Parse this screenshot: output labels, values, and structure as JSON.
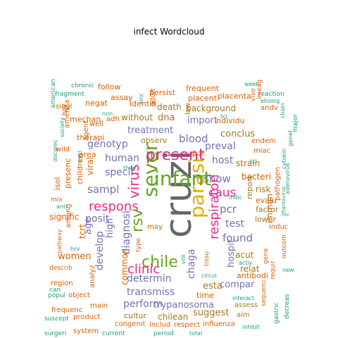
{
  "title": "infect  Wordcloud",
  "palette": {
    "teal": "#1b9e77",
    "orange": "#d95f02",
    "purple": "#7570b3",
    "pink": "#e7298a",
    "green": "#66a61e",
    "gold": "#e6ab02",
    "brown": "#a6761d",
    "gray": "#666666"
  },
  "words": [
    {
      "text": "cruzi",
      "color": "gray"
    },
    {
      "text": "parasit",
      "color": "gold"
    },
    {
      "text": "sever",
      "color": "green"
    },
    {
      "text": "infant",
      "color": "green"
    },
    {
      "text": "present",
      "color": "pink"
    },
    {
      "text": "respons",
      "color": "pink"
    },
    {
      "text": "virus",
      "color": "pink"
    },
    {
      "text": "rsv",
      "color": "green"
    },
    {
      "text": "chile",
      "color": "green"
    },
    {
      "text": "clinic",
      "color": "pink"
    },
    {
      "text": "respiratori",
      "color": "pink"
    },
    {
      "text": "caus",
      "color": "pink"
    },
    {
      "text": "show",
      "color": "purple"
    },
    {
      "text": "sampl",
      "color": "purple"
    },
    {
      "text": "blood",
      "color": "purple"
    },
    {
      "text": "host",
      "color": "purple"
    },
    {
      "text": "pcr",
      "color": "purple"
    },
    {
      "text": "test",
      "color": "purple"
    },
    {
      "text": "found",
      "color": "purple"
    },
    {
      "text": "human",
      "color": "purple"
    },
    {
      "text": "specif",
      "color": "purple"
    },
    {
      "text": "posit",
      "color": "purple"
    },
    {
      "text": "diagnosi",
      "color": "purple"
    },
    {
      "text": "genotyp",
      "color": "purple"
    },
    {
      "text": "treatment",
      "color": "purple"
    },
    {
      "text": "determin",
      "color": "purple"
    },
    {
      "text": "transmiss",
      "color": "purple"
    },
    {
      "text": "perform",
      "color": "purple"
    },
    {
      "text": "chaga",
      "color": "purple"
    },
    {
      "text": "hospit",
      "color": "purple"
    },
    {
      "text": "preval",
      "color": "purple"
    },
    {
      "text": "compar",
      "color": "purple"
    },
    {
      "text": "trypanosoma",
      "color": "purple"
    },
    {
      "text": "conclus",
      "color": "brown"
    },
    {
      "text": "import",
      "color": "purple"
    },
    {
      "text": "age",
      "color": "purple"
    },
    {
      "text": "develop",
      "color": "purple"
    },
    {
      "text": "high",
      "color": "purple"
    },
    {
      "text": "signific",
      "color": "orange"
    },
    {
      "text": "women",
      "color": "orange"
    },
    {
      "text": "dna",
      "color": "brown"
    },
    {
      "text": "without",
      "color": "brown"
    },
    {
      "text": "death",
      "color": "brown"
    },
    {
      "text": "background",
      "color": "brown"
    },
    {
      "text": "observ",
      "color": "brown"
    },
    {
      "text": "bacteri",
      "color": "orange"
    },
    {
      "text": "report",
      "color": "brown"
    },
    {
      "text": "risk",
      "color": "brown"
    },
    {
      "text": "evalu",
      "color": "orange"
    },
    {
      "text": "strain",
      "color": "orange"
    },
    {
      "text": "factor",
      "color": "brown"
    },
    {
      "text": "lower",
      "color": "brown"
    },
    {
      "text": "acut",
      "color": "brown"
    },
    {
      "text": "relat",
      "color": "brown"
    },
    {
      "text": "antibodi",
      "color": "orange"
    },
    {
      "text": "esta",
      "color": "brown"
    },
    {
      "text": "suggest",
      "color": "brown"
    },
    {
      "text": "time",
      "color": "orange"
    },
    {
      "text": "cultur",
      "color": "brown"
    },
    {
      "text": "chilean",
      "color": "brown"
    },
    {
      "text": "common",
      "color": "orange"
    },
    {
      "text": "aim",
      "color": "brown"
    },
    {
      "text": "assess",
      "color": "brown"
    },
    {
      "text": "influenza",
      "color": "orange"
    },
    {
      "text": "respect",
      "color": "orange"
    },
    {
      "text": "includ",
      "color": "orange"
    },
    {
      "text": "period",
      "color": "teal"
    },
    {
      "text": "total",
      "color": "teal"
    },
    {
      "text": "current",
      "color": "teal"
    },
    {
      "text": "system",
      "color": "orange"
    },
    {
      "text": "product",
      "color": "orange"
    },
    {
      "text": "congenit",
      "color": "orange"
    },
    {
      "text": "surgeri",
      "color": "teal"
    },
    {
      "text": "suscept",
      "color": "teal"
    },
    {
      "text": "popul",
      "color": "teal"
    },
    {
      "text": "frequenc",
      "color": "orange"
    },
    {
      "text": "main",
      "color": "orange"
    },
    {
      "text": "object",
      "color": "orange"
    },
    {
      "text": "region",
      "color": "orange"
    },
    {
      "text": "can",
      "color": "teal"
    },
    {
      "text": "describ",
      "color": "orange"
    },
    {
      "text": "analyz",
      "color": "orange"
    },
    {
      "text": "pathway",
      "color": "orange"
    },
    {
      "text": "hrv",
      "color": "teal"
    },
    {
      "text": "tcrt",
      "color": "orange"
    },
    {
      "text": "among",
      "color": "orange"
    },
    {
      "text": "mix",
      "color": "orange"
    },
    {
      "text": "anti",
      "color": "teal"
    },
    {
      "text": "isol",
      "color": "orange"
    },
    {
      "text": "presenc",
      "color": "orange"
    },
    {
      "text": "children",
      "color": "orange"
    },
    {
      "text": "viral",
      "color": "orange"
    },
    {
      "text": "area",
      "color": "orange"
    },
    {
      "text": "therapi",
      "color": "orange"
    },
    {
      "text": "mechan",
      "color": "orange"
    },
    {
      "text": "agent",
      "color": "orange"
    },
    {
      "text": "singl",
      "color": "orange"
    },
    {
      "text": "american",
      "color": "teal"
    },
    {
      "text": "fragment",
      "color": "teal"
    },
    {
      "text": "america",
      "color": "orange"
    },
    {
      "text": "chronic",
      "color": "teal"
    },
    {
      "text": "follow",
      "color": "orange"
    },
    {
      "text": "assay",
      "color": "orange"
    },
    {
      "text": "negat",
      "color": "orange"
    },
    {
      "text": "identifi",
      "color": "orange"
    },
    {
      "text": "persist",
      "color": "orange"
    },
    {
      "text": "adult",
      "color": "orange"
    },
    {
      "text": "frequent",
      "color": "orange"
    },
    {
      "text": "placent",
      "color": "orange"
    },
    {
      "text": "placenta",
      "color": "orange"
    },
    {
      "text": "week",
      "color": "teal"
    },
    {
      "text": "reaction",
      "color": "teal"
    },
    {
      "text": "individu",
      "color": "orange"
    },
    {
      "text": "endem",
      "color": "orange"
    },
    {
      "text": "miac",
      "color": "orange"
    },
    {
      "text": "immun",
      "color": "orange"
    },
    {
      "text": "pathogen",
      "color": "orange"
    },
    {
      "text": "induc",
      "color": "orange"
    },
    {
      "text": "outcom",
      "color": "orange"
    },
    {
      "text": "gene",
      "color": "orange"
    },
    {
      "text": "requir",
      "color": "orange"
    },
    {
      "text": "new",
      "color": "teal"
    },
    {
      "text": "sequenc",
      "color": "orange"
    },
    {
      "text": "decreas",
      "color": "teal"
    },
    {
      "text": "gastric",
      "color": "teal"
    },
    {
      "text": "inhibit",
      "color": "teal"
    },
    {
      "text": "interact",
      "color": "teal"
    },
    {
      "text": "circul",
      "color": "teal"
    },
    {
      "text": "activ",
      "color": "teal"
    },
    {
      "text": "indic",
      "color": "teal"
    },
    {
      "text": "andv",
      "color": "orange"
    },
    {
      "text": "etiolog",
      "color": "teal"
    },
    {
      "text": "chain",
      "color": "teal"
    },
    {
      "text": "cytokin",
      "color": "teal"
    },
    {
      "text": "genet",
      "color": "teal"
    },
    {
      "text": "major",
      "color": "teal"
    },
    {
      "text": "adenovirus",
      "color": "teal"
    },
    {
      "text": "hiv",
      "color": "teal"
    },
    {
      "text": "hantavirus",
      "color": "teal"
    },
    {
      "text": "well",
      "color": "orange"
    },
    {
      "text": "adh",
      "color": "orange"
    },
    {
      "text": "non",
      "color": "teal"
    },
    {
      "text": "sinc",
      "color": "teal"
    },
    {
      "text": "low",
      "color": "orange"
    },
    {
      "text": "vivo",
      "color": "orange"
    },
    {
      "text": "may",
      "color": "orange"
    },
    {
      "text": "type",
      "color": "orange"
    },
    {
      "text": "tissu",
      "color": "orange"
    },
    {
      "text": "villi",
      "color": "teal"
    },
    {
      "text": "igm",
      "color": "teal"
    },
    {
      "text": "tcl",
      "color": "teal"
    },
    {
      "text": "thus",
      "color": "teal"
    },
    {
      "text": "tcl",
      "color": "teal"
    },
    {
      "text": "society",
      "color": "teal"
    },
    {
      "text": "wild",
      "color": "orange"
    },
    {
      "text": "docgrec",
      "color": "teal"
    },
    {
      "text": "cycl",
      "color": "teal"
    },
    {
      "text": "hpv",
      "color": "orange"
    },
    {
      "text": "imeag",
      "color": "orange"
    }
  ]
}
